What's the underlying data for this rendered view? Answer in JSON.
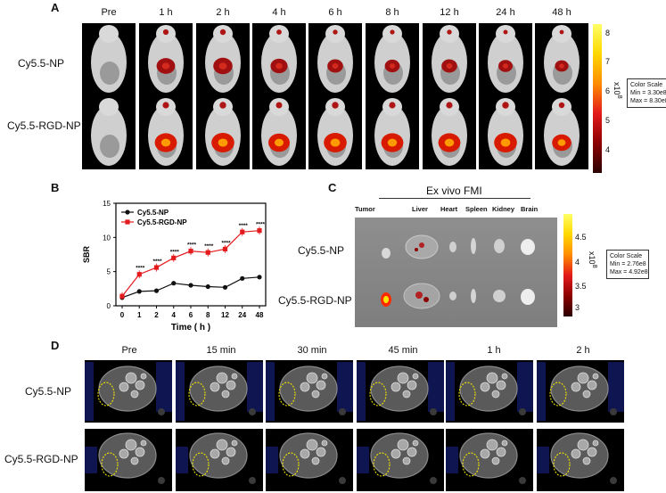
{
  "panel_a": {
    "label": "A",
    "timepoints": [
      "Pre",
      "1 h",
      "2 h",
      "4 h",
      "6 h",
      "8 h",
      "12 h",
      "24 h",
      "48 h"
    ],
    "rows": [
      "Cy5.5-NP",
      "Cy5.5-RGD-NP"
    ],
    "colorbar": {
      "ticks": [
        "8",
        "7",
        "6",
        "5",
        "4"
      ],
      "exponent": "x10",
      "exponent_power": "8"
    },
    "color_scale": {
      "title": "Color Scale",
      "min": "Min = 3.30e8",
      "max": "Max = 8.30e8"
    }
  },
  "panel_b": {
    "label": "B"
  },
  "panel_c": {
    "label": "C",
    "title": "Ex vivo FMI",
    "organs": [
      "Tumor",
      "Liver",
      "Heart",
      "Spleen",
      "Kidney",
      "Brain"
    ],
    "rows": [
      "Cy5.5-NP",
      "Cy5.5-RGD-NP"
    ],
    "colorbar": {
      "ticks": [
        "4.5",
        "4",
        "3.5",
        "3"
      ],
      "exponent": "x10",
      "exponent_power": "8"
    },
    "color_scale": {
      "title": "Color Scale",
      "min": "Min = 2.76e8",
      "max": "Max = 4.92e8"
    }
  },
  "panel_d": {
    "label": "D",
    "timepoints": [
      "Pre",
      "15 min",
      "30 min",
      "45 min",
      "1 h",
      "2 h"
    ],
    "rows": [
      "Cy5.5-NP",
      "Cy5.5-RGD-NP"
    ]
  },
  "chart_data": {
    "type": "line",
    "x": [
      "0",
      "1",
      "2",
      "4",
      "6",
      "8",
      "12",
      "24",
      "48"
    ],
    "series": [
      {
        "name": "Cy5.5-NP",
        "color": "#111111",
        "marker": "circle",
        "values": [
          1.2,
          2.1,
          2.2,
          3.3,
          3.0,
          2.8,
          2.7,
          4.0,
          4.2
        ]
      },
      {
        "name": "Cy5.5-RGD-NP",
        "color": "#e41a1c",
        "marker": "square",
        "values": [
          1.4,
          4.6,
          5.6,
          7.0,
          8.0,
          7.8,
          8.3,
          10.8,
          11.0
        ]
      }
    ],
    "significance": [
      "",
      "****",
      "****",
      "****",
      "****",
      "****",
      "****",
      "****",
      "****"
    ],
    "xlabel": "Time ( h )",
    "ylabel": "SBR",
    "ylim": [
      0,
      15
    ],
    "yticks": [
      "0",
      "5",
      "10",
      "15"
    ],
    "legend": "top-left"
  }
}
